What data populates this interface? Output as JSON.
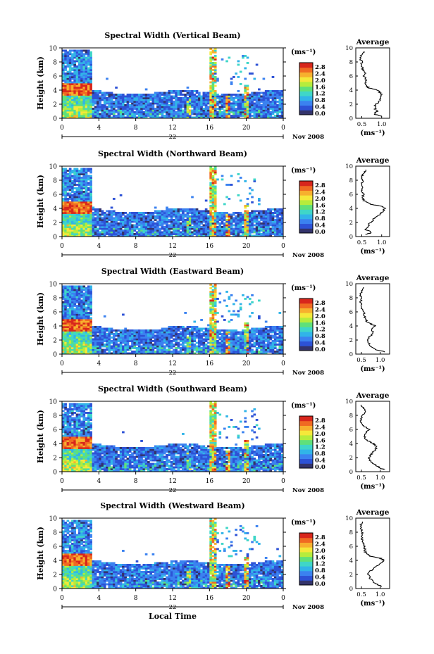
{
  "figure": {
    "xlabel": "Local Time",
    "colorbar_unit": "(ms⁻¹)",
    "colorbar_ticks": [
      "0.0",
      "0.4",
      "0.8",
      "1.2",
      "1.6",
      "2.0",
      "2.4",
      "2.8"
    ],
    "colorscale": [
      "#33336b",
      "#2d52d6",
      "#3b82f0",
      "#31b4e8",
      "#3fd6c8",
      "#5fe07a",
      "#b6ec3c",
      "#f5e83a",
      "#f7b02e",
      "#f06a22",
      "#d8261c"
    ],
    "time_ticks": [
      "0",
      "4",
      "8",
      "12",
      "16",
      "20",
      "0"
    ],
    "height_ticks": [
      "0",
      "2",
      "4",
      "6",
      "8",
      "10"
    ],
    "ylabel": "Height (km)",
    "date_label": "Nov 2008",
    "avg_title": "Average",
    "avg_xlabel": "(ms⁻¹)",
    "line_color": "#000000"
  },
  "chart_data": [
    {
      "type": "heatmap",
      "title": "Spectral Width (Vertical Beam)",
      "day_label": "22",
      "xlim": [
        0,
        24
      ],
      "ylim": [
        0,
        10
      ],
      "zlim": [
        0.0,
        2.8
      ],
      "avg_profile": {
        "type": "line",
        "title": "Average",
        "xlabel": "(ms⁻¹)",
        "ylabel": "Height (km)",
        "xticks": [
          "0.5",
          "1.0"
        ],
        "xlim": [
          0.35,
          1.2
        ],
        "height": [
          0.3,
          0.6,
          1.0,
          1.5,
          2.0,
          2.5,
          3.0,
          3.5,
          4.0,
          4.3,
          4.6,
          5.0,
          5.5,
          6.0,
          6.5,
          7.0,
          7.5,
          8.0,
          8.5,
          9.0,
          9.5
        ],
        "value": [
          1.0,
          0.8,
          0.88,
          0.82,
          0.86,
          0.95,
          1.0,
          0.98,
          0.9,
          0.68,
          0.6,
          0.58,
          0.62,
          0.55,
          0.6,
          0.52,
          0.48,
          0.5,
          0.45,
          0.5,
          0.55
        ]
      }
    },
    {
      "type": "heatmap",
      "title": "Spectral Width (Northward Beam)",
      "day_label": "22",
      "xlim": [
        0,
        24
      ],
      "ylim": [
        0,
        10
      ],
      "zlim": [
        0.0,
        2.8
      ],
      "avg_profile": {
        "type": "line",
        "title": "Average",
        "xlabel": "(ms⁻¹)",
        "ylabel": "Height (km)",
        "xticks": [
          "0.5",
          "1.0"
        ],
        "xlim": [
          0.35,
          1.2
        ],
        "height": [
          0.3,
          0.6,
          1.0,
          1.5,
          2.0,
          2.5,
          3.0,
          3.5,
          4.0,
          4.3,
          4.6,
          5.0,
          5.5,
          6.0,
          6.5,
          7.0,
          7.5,
          8.0,
          8.5,
          9.0,
          9.5
        ],
        "value": [
          0.62,
          0.75,
          0.6,
          0.66,
          0.72,
          0.8,
          0.92,
          1.02,
          1.08,
          1.0,
          0.72,
          0.58,
          0.5,
          0.56,
          0.48,
          0.55,
          0.5,
          0.52,
          0.48,
          0.56,
          0.6
        ]
      }
    },
    {
      "type": "heatmap",
      "title": "Spectral Width (Eastward Beam)",
      "day_label": "22",
      "xlim": [
        0,
        24
      ],
      "ylim": [
        0,
        10
      ],
      "zlim": [
        0.0,
        2.8
      ],
      "avg_profile": {
        "type": "line",
        "title": "Average",
        "xlabel": "(ms⁻¹)",
        "ylabel": "Height (km)",
        "xticks": [
          "0.5",
          "1.0"
        ],
        "xlim": [
          0.35,
          1.25
        ],
        "height": [
          0.3,
          0.6,
          1.0,
          1.5,
          2.0,
          2.5,
          3.0,
          3.5,
          4.0,
          4.3,
          4.6,
          5.0,
          5.5,
          6.0,
          6.5,
          7.0,
          7.5,
          8.0,
          8.5,
          9.0,
          9.5
        ],
        "value": [
          1.12,
          0.92,
          0.78,
          0.7,
          0.66,
          0.72,
          0.82,
          0.76,
          0.88,
          0.74,
          0.64,
          0.6,
          0.58,
          0.56,
          0.52,
          0.5,
          0.48,
          0.5,
          0.46,
          0.52,
          0.56
        ]
      }
    },
    {
      "type": "heatmap",
      "title": "Spectral Width (Southward Beam)",
      "day_label": "22",
      "xlim": [
        0,
        24
      ],
      "ylim": [
        0,
        10
      ],
      "zlim": [
        0.0,
        2.8
      ],
      "avg_profile": {
        "type": "line",
        "title": "Average",
        "xlabel": "(ms⁻¹)",
        "ylabel": "Height (km)",
        "xticks": [
          "0.5",
          "1.0"
        ],
        "xlim": [
          0.35,
          1.25
        ],
        "height": [
          0.3,
          0.6,
          1.0,
          1.5,
          2.0,
          2.5,
          3.0,
          3.5,
          4.0,
          4.3,
          4.6,
          5.0,
          5.5,
          6.0,
          6.5,
          7.0,
          7.5,
          8.0,
          8.5,
          9.0,
          9.5
        ],
        "value": [
          1.1,
          0.98,
          0.86,
          0.74,
          0.7,
          0.76,
          0.86,
          0.9,
          0.82,
          0.7,
          0.62,
          0.58,
          0.6,
          0.7,
          0.56,
          0.5,
          0.48,
          0.52,
          0.6,
          0.56,
          0.5
        ]
      }
    },
    {
      "type": "heatmap",
      "title": "Spectral Width (Westward Beam)",
      "day_label": "22",
      "xlim": [
        0,
        24
      ],
      "ylim": [
        0,
        10
      ],
      "zlim": [
        0.0,
        2.8
      ],
      "avg_profile": {
        "type": "line",
        "title": "Average",
        "xlabel": "(ms⁻¹)",
        "ylabel": "Height (km)",
        "xticks": [
          "0.5",
          "1.0"
        ],
        "xlim": [
          0.35,
          1.25
        ],
        "height": [
          0.3,
          0.6,
          1.0,
          1.5,
          2.0,
          2.5,
          3.0,
          3.5,
          4.0,
          4.3,
          4.6,
          5.0,
          5.5,
          6.0,
          6.5,
          7.0,
          7.5,
          8.0,
          8.5,
          9.0,
          9.5
        ],
        "value": [
          1.05,
          0.92,
          0.8,
          0.72,
          0.68,
          0.74,
          0.86,
          0.98,
          1.1,
          1.0,
          0.74,
          0.62,
          0.58,
          0.6,
          0.54,
          0.52,
          0.5,
          0.52,
          0.5,
          0.48,
          0.52
        ]
      }
    }
  ]
}
